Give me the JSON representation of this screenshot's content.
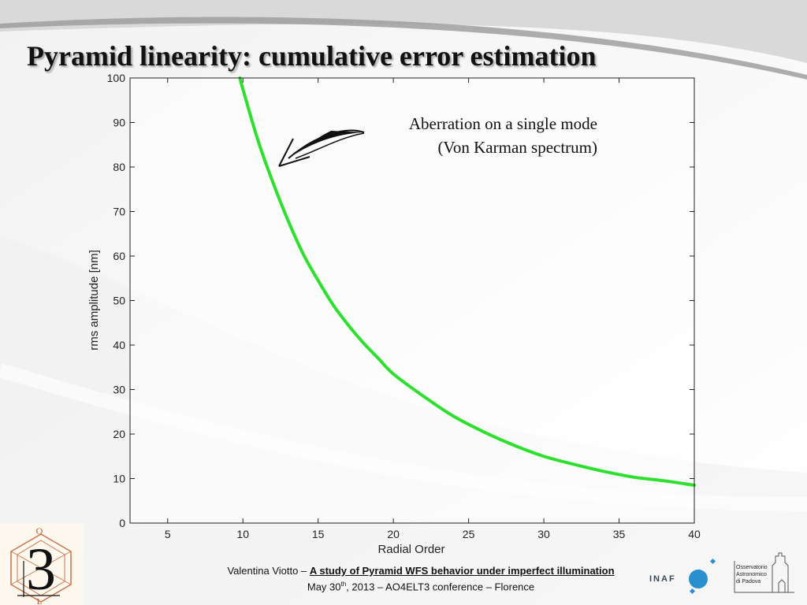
{
  "slide": {
    "title": "Pyramid linearity: cumulative error estimation"
  },
  "annotation": {
    "line1": "Aberration on a single mode",
    "line2": "(Von Karman spectrum)"
  },
  "footer": {
    "author": "Valentina Viotto",
    "dash": "–",
    "talk_title": "A study of Pyramid WFS behavior under imperfect illumination",
    "date_prefix": "May 30",
    "date_sup": "th",
    "date_rest": ", 2013 – AO4ELT3 conference – Florence"
  },
  "logos": {
    "inaf_text": "INAF",
    "observatory_line1": "Osservatorio",
    "observatory_line2": "Astronomico",
    "observatory_line3": "di Padova",
    "conference_numeral": "3",
    "conference_letters": [
      "O",
      "L"
    ]
  },
  "colors": {
    "curve": "#2ee02e",
    "axis": "#222222",
    "title_text": "#111111"
  },
  "chart_data": {
    "type": "line",
    "title": "",
    "xlabel": "Radial Order",
    "ylabel": "rms amplitude [nm]",
    "xlim": [
      2.5,
      40
    ],
    "ylim": [
      0,
      100
    ],
    "xticks": [
      5,
      10,
      15,
      20,
      25,
      30,
      35,
      40
    ],
    "yticks": [
      0,
      10,
      20,
      30,
      40,
      50,
      60,
      70,
      80,
      90,
      100
    ],
    "grid": false,
    "series": [
      {
        "x": [
          9.8,
          10,
          11,
          12,
          13,
          14,
          15,
          16,
          17,
          18,
          19,
          20,
          22,
          24,
          26,
          28,
          30,
          32,
          34,
          36,
          38,
          40
        ],
        "y": [
          100,
          97.5,
          86,
          76.5,
          68,
          60.5,
          54.5,
          49,
          44.5,
          40.5,
          37,
          33.5,
          28.5,
          24,
          20.5,
          17.5,
          15,
          13.2,
          11.6,
          10.3,
          9.5,
          8.5
        ]
      }
    ]
  }
}
